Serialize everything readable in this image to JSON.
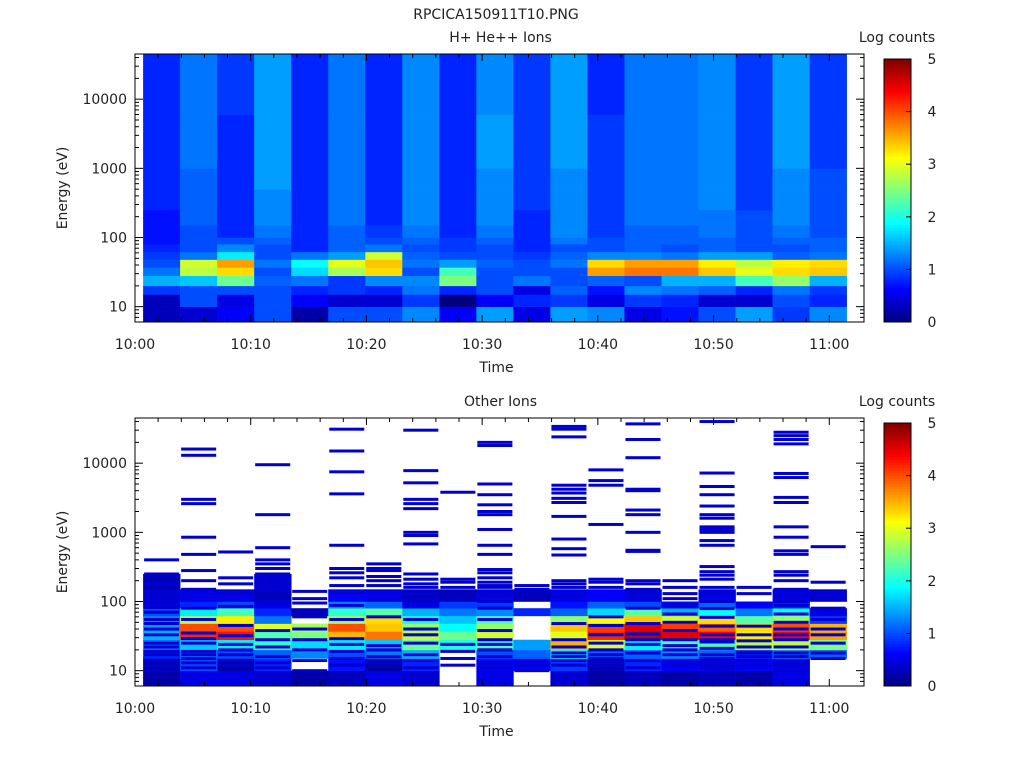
{
  "figure": {
    "title": "RPCICA150911T10.PNG"
  },
  "colors": {
    "jet": [
      "#00007f",
      "#0000ff",
      "#007fff",
      "#00ffff",
      "#7fff7f",
      "#ffff00",
      "#ff7f00",
      "#ff0000",
      "#7f0000"
    ],
    "axis": "#000000"
  },
  "chart_data": [
    {
      "type": "heatmap",
      "title": "H+ He++ Ions",
      "xlabel": "Time",
      "ylabel": "Energy (eV)",
      "colorbar_label": "Log counts",
      "x_ticks": [
        "10:00",
        "10:10",
        "10:20",
        "10:30",
        "10:40",
        "10:50",
        "11:00"
      ],
      "y_ticks": [
        "10",
        "100",
        "1000",
        "10000"
      ],
      "colorbar_ticks": [
        "0",
        "1",
        "2",
        "3",
        "4",
        "5"
      ],
      "y_scale": "log",
      "ylim": [
        6,
        45000
      ],
      "xlim_minutes": [
        0,
        63
      ],
      "color_range": [
        0,
        5
      ],
      "time_bins_minutes": [
        0.7,
        3.9,
        7.1,
        10.3,
        13.5,
        16.7,
        19.9,
        23.1,
        26.3,
        29.5,
        32.7,
        35.9,
        39.1,
        42.3,
        45.5,
        48.7,
        51.9,
        55.1,
        58.3,
        61.5
      ],
      "energy_band_edges_eV": [
        6,
        10,
        15,
        20,
        28,
        37,
        48,
        62,
        80,
        100,
        150,
        250,
        500,
        1000,
        2500,
        6000,
        15000,
        45000
      ],
      "values": [
        [
          0.3,
          0.4,
          0.6,
          1.0,
          0.2,
          1.0,
          1.0,
          1.3,
          0.6,
          1.4,
          0.5,
          1.4,
          1.3,
          0.5,
          0.7,
          1.0,
          1.4,
          0.9,
          1.3
        ],
        [
          0.3,
          1.0,
          0.5,
          1.0,
          0.6,
          0.4,
          0.4,
          0.9,
          0.0,
          0.6,
          0.8,
          0.9,
          0.5,
          0.9,
          0.8,
          0.4,
          0.4,
          1.0,
          0.8
        ],
        [
          0.9,
          1.0,
          1.0,
          1.0,
          0.8,
          0.9,
          0.8,
          1.2,
          0.8,
          1.0,
          0.5,
          1.1,
          0.7,
          1.3,
          1.2,
          1.1,
          0.8,
          1.2,
          0.9
        ],
        [
          1.5,
          1.6,
          2.4,
          1.1,
          1.2,
          0.9,
          1.3,
          1.3,
          2.5,
          1.0,
          1.2,
          1.0,
          1.1,
          1.0,
          1.5,
          1.5,
          2.2,
          2.6,
          1.5
        ],
        [
          1.2,
          2.8,
          3.3,
          1.0,
          1.7,
          2.7,
          3.3,
          1.0,
          2.2,
          1.0,
          1.0,
          1.0,
          3.6,
          3.8,
          3.8,
          3.4,
          3.0,
          3.3,
          3.4
        ],
        [
          1.0,
          2.9,
          3.6,
          1.2,
          1.9,
          3.0,
          3.4,
          1.2,
          1.4,
          1.1,
          1.0,
          1.2,
          3.3,
          3.6,
          3.6,
          3.2,
          2.8,
          3.2,
          3.3
        ],
        [
          0.9,
          1.2,
          1.8,
          1.0,
          1.2,
          1.4,
          2.9,
          1.1,
          1.0,
          1.0,
          0.9,
          1.1,
          1.3,
          1.3,
          1.2,
          1.4,
          1.4,
          1.1,
          1.2
        ],
        [
          0.8,
          1.0,
          1.3,
          1.0,
          0.8,
          1.1,
          1.2,
          1.0,
          0.9,
          1.0,
          0.8,
          1.0,
          1.0,
          1.1,
          1.0,
          1.1,
          1.0,
          1.0,
          1.1
        ],
        [
          0.7,
          1.0,
          1.0,
          1.1,
          0.8,
          1.1,
          1.0,
          1.1,
          0.9,
          1.1,
          0.8,
          1.2,
          1.0,
          1.1,
          1.1,
          1.1,
          1.0,
          1.1,
          1.1
        ],
        [
          0.7,
          1.0,
          0.8,
          1.2,
          0.8,
          1.1,
          0.9,
          1.2,
          0.8,
          1.2,
          0.8,
          1.3,
          0.9,
          1.1,
          1.1,
          1.2,
          1.0,
          1.2,
          1.0
        ],
        [
          0.7,
          1.1,
          0.8,
          1.3,
          0.8,
          1.2,
          0.8,
          1.3,
          0.8,
          1.3,
          0.8,
          1.3,
          0.9,
          1.2,
          1.2,
          1.2,
          1.0,
          1.3,
          1.0
        ],
        [
          0.8,
          1.1,
          0.8,
          1.3,
          0.8,
          1.2,
          0.8,
          1.3,
          0.8,
          1.3,
          0.9,
          1.3,
          0.9,
          1.2,
          1.2,
          1.3,
          0.9,
          1.3,
          1.0
        ],
        [
          0.8,
          1.1,
          0.8,
          1.4,
          0.8,
          1.2,
          0.8,
          1.3,
          0.8,
          1.3,
          0.9,
          1.3,
          0.9,
          1.2,
          1.2,
          1.3,
          0.9,
          1.3,
          1.0
        ],
        [
          0.8,
          1.2,
          0.8,
          1.4,
          0.8,
          1.2,
          0.8,
          1.3,
          0.8,
          1.4,
          0.9,
          1.4,
          0.9,
          1.2,
          1.2,
          1.3,
          0.9,
          1.4,
          0.9
        ],
        [
          0.8,
          1.2,
          0.8,
          1.4,
          0.8,
          1.2,
          0.8,
          1.3,
          0.8,
          1.4,
          0.9,
          1.4,
          0.9,
          1.2,
          1.2,
          1.3,
          0.9,
          1.4,
          0.9
        ],
        [
          0.8,
          1.2,
          0.9,
          1.4,
          0.8,
          1.2,
          0.8,
          1.3,
          0.8,
          1.3,
          0.9,
          1.4,
          0.8,
          1.2,
          1.2,
          1.3,
          0.9,
          1.4,
          0.9
        ],
        [
          0.8,
          1.2,
          0.9,
          1.4,
          0.8,
          1.2,
          0.8,
          1.3,
          0.8,
          1.3,
          0.9,
          1.4,
          0.8,
          1.2,
          1.2,
          1.3,
          0.9,
          1.4,
          0.9
        ]
      ]
    },
    {
      "type": "heatmap",
      "title": "Other Ions",
      "xlabel": "Time",
      "ylabel": "Energy (eV)",
      "colorbar_label": "Log counts",
      "x_ticks": [
        "10:00",
        "10:10",
        "10:20",
        "10:30",
        "10:40",
        "10:50",
        "11:00"
      ],
      "y_ticks": [
        "10",
        "100",
        "1000",
        "10000"
      ],
      "colorbar_ticks": [
        "0",
        "1",
        "2",
        "3",
        "4",
        "5"
      ],
      "y_scale": "log",
      "ylim": [
        6,
        45000
      ],
      "xlim_minutes": [
        0,
        63
      ],
      "color_range": [
        0,
        5
      ],
      "time_bins_minutes": [
        0.7,
        3.9,
        7.1,
        10.3,
        13.5,
        16.7,
        19.9,
        23.1,
        26.3,
        29.5,
        32.7,
        35.9,
        39.1,
        42.3,
        45.5,
        48.7,
        51.9,
        55.1,
        58.3,
        61.5
      ],
      "energy_band_edges_eV": [
        6,
        10,
        15,
        20,
        28,
        37,
        48,
        62,
        80,
        100,
        150,
        250,
        500,
        1000,
        2500,
        6000,
        15000,
        45000
      ],
      "values": [
        [
          0.2,
          0.5,
          0.5,
          0.4,
          0.2,
          0.3,
          0.5,
          0.4,
          null,
          0.5,
          null,
          0.4,
          0.2,
          0.3,
          0.2,
          0.3,
          0.2,
          0.5,
          null
        ],
        [
          0.2,
          1.0,
          0.2,
          0.8,
          null,
          0.7,
          0.2,
          0.8,
          null,
          0.6,
          0.6,
          0.9,
          0.3,
          0.8,
          0.6,
          0.5,
          0.6,
          0.5,
          null
        ],
        [
          0.8,
          1.2,
          1.0,
          1.1,
          1.3,
          1.0,
          1.2,
          1.5,
          null,
          1.0,
          1.1,
          1.8,
          1.1,
          1.1,
          1.3,
          1.1,
          0.8,
          1.2,
          1.1
        ],
        [
          1.2,
          1.6,
          1.8,
          2.1,
          1.7,
          1.8,
          1.6,
          2.4,
          2.0,
          2.2,
          1.4,
          3.5,
          3.0,
          1.8,
          2.2,
          2.2,
          2.8,
          2.8,
          2.5
        ],
        [
          1.5,
          4.2,
          4.3,
          2.3,
          2.5,
          3.5,
          3.8,
          2.8,
          2.4,
          2.9,
          null,
          3.0,
          4.2,
          4.7,
          4.5,
          4.4,
          3.2,
          4.4,
          3.6
        ],
        [
          1.4,
          4.0,
          4.0,
          3.0,
          2.7,
          4.0,
          3.4,
          2.6,
          1.9,
          2.6,
          null,
          3.4,
          4.1,
          4.5,
          4.1,
          3.9,
          3.3,
          4.0,
          3.5
        ],
        [
          1.3,
          2.8,
          3.2,
          1.2,
          null,
          2.7,
          3.3,
          2.0,
          1.6,
          2.2,
          null,
          2.6,
          3.1,
          3.4,
          2.9,
          3.3,
          2.3,
          2.6,
          0.9
        ],
        [
          1.0,
          1.8,
          2.2,
          0.8,
          0.3,
          2.1,
          2.3,
          1.5,
          1.2,
          1.3,
          0.8,
          1.1,
          1.7,
          2.3,
          1.5,
          1.9,
          1.2,
          1.9,
          0.5
        ],
        [
          0.5,
          0.8,
          1.0,
          0.5,
          null,
          1.3,
          1.1,
          0.5,
          0.9,
          0.9,
          null,
          0.7,
          1.1,
          1.0,
          0.6,
          1.1,
          0.6,
          0.8,
          null
        ],
        [
          0.4,
          0.5,
          0.5,
          0.3,
          null,
          0.6,
          0.5,
          0.3,
          0.3,
          0.5,
          0.3,
          0.5,
          0.6,
          0.5,
          null,
          0.5,
          null,
          0.5,
          0.4
        ],
        [
          0.3,
          null,
          null,
          0.4,
          null,
          null,
          null,
          null,
          null,
          null,
          null,
          null,
          null,
          null,
          null,
          null,
          null,
          null,
          null
        ],
        [
          null,
          null,
          null,
          null,
          null,
          null,
          null,
          null,
          null,
          null,
          null,
          null,
          null,
          null,
          null,
          null,
          null,
          null,
          null
        ],
        [
          null,
          null,
          null,
          null,
          null,
          null,
          null,
          null,
          null,
          null,
          null,
          null,
          null,
          null,
          null,
          null,
          null,
          null,
          null
        ],
        [
          null,
          null,
          null,
          null,
          null,
          null,
          null,
          null,
          null,
          null,
          null,
          null,
          null,
          null,
          null,
          null,
          null,
          null,
          null
        ],
        [
          null,
          null,
          null,
          null,
          null,
          null,
          null,
          null,
          null,
          null,
          null,
          null,
          null,
          null,
          null,
          null,
          null,
          null,
          null
        ],
        [
          null,
          null,
          null,
          null,
          null,
          null,
          null,
          null,
          null,
          null,
          null,
          null,
          null,
          null,
          null,
          null,
          null,
          null,
          null
        ],
        [
          null,
          null,
          null,
          null,
          null,
          null,
          null,
          null,
          null,
          null,
          null,
          null,
          null,
          null,
          null,
          null,
          null,
          null,
          null
        ]
      ],
      "sparse_lines_eV": [
        [
          10,
          12,
          14,
          17,
          19,
          22,
          25,
          33,
          40,
          48,
          55,
          70,
          82,
          95,
          130,
          180,
          250,
          400
        ],
        [
          11,
          13,
          15,
          17,
          19,
          25,
          29,
          35,
          55,
          80,
          150,
          200,
          280,
          480,
          850,
          2600,
          3000,
          13000,
          16000
        ],
        [
          12,
          14,
          17,
          20,
          24,
          32,
          45,
          85,
          130,
          180,
          220,
          520
        ],
        [
          11,
          13,
          16,
          22,
          28,
          38,
          100,
          150,
          200,
          250,
          300,
          350,
          400,
          600,
          1800,
          9500
        ],
        [
          10,
          14,
          20,
          28,
          40,
          60,
          95,
          110,
          140
        ],
        [
          12,
          15,
          19,
          24,
          29,
          55,
          88,
          130,
          170,
          220,
          260,
          300,
          650,
          3600,
          7500,
          15000,
          31000
        ],
        [
          13,
          16,
          20,
          23,
          60,
          170,
          200,
          230,
          280,
          300,
          350
        ],
        [
          11,
          14,
          17,
          25,
          33,
          40,
          55,
          110,
          130,
          160,
          180,
          210,
          250,
          680,
          900,
          1000,
          2200,
          2600,
          3000,
          5200,
          7800,
          30000
        ],
        [
          12,
          15,
          19,
          24,
          160,
          190,
          210,
          3800
        ],
        [
          11,
          13,
          16,
          20,
          24,
          28,
          38,
          55,
          80,
          100,
          120,
          140,
          160,
          170,
          190,
          220,
          260,
          290,
          480,
          650,
          1100,
          1800,
          2000,
          2500,
          3500,
          5000,
          18000,
          20000
        ],
        [
          10,
          12,
          14,
          150,
          170
        ],
        [
          12,
          14,
          16,
          18,
          22,
          28,
          48,
          120,
          160,
          180,
          200,
          470,
          580,
          800,
          1700,
          2700,
          3100,
          3700,
          4200,
          4800,
          24000,
          31000,
          34000
        ],
        [
          13,
          15,
          17,
          20,
          25,
          33,
          45,
          60,
          160,
          190,
          210,
          1300,
          4800,
          5600,
          8000
        ],
        [
          11,
          14,
          18,
          24,
          28,
          34,
          48,
          80,
          110,
          130,
          150,
          180,
          200,
          530,
          550,
          1000,
          1800,
          2100,
          4000,
          4200,
          12000,
          22000,
          37000
        ],
        [
          12,
          14,
          17,
          20,
          23,
          28,
          38,
          50,
          66,
          88,
          110,
          130,
          160,
          200
        ],
        [
          11,
          13,
          15,
          17,
          21,
          26,
          28,
          33,
          44,
          59,
          79,
          100,
          130,
          160,
          210,
          240,
          270,
          320,
          650,
          760,
          1000,
          1100,
          1200,
          1600,
          1800,
          2400,
          3500,
          4600,
          7200,
          40000
        ],
        [
          12,
          14,
          16,
          18,
          22,
          27,
          33,
          44,
          130,
          160
        ],
        [
          10,
          12,
          14,
          16,
          18,
          22,
          28,
          33,
          40,
          50,
          66,
          88,
          100,
          120,
          150,
          200,
          240,
          270,
          480,
          540,
          850,
          1200,
          2700,
          3200,
          6200,
          7100,
          19000,
          22000,
          25000,
          28000
        ],
        [
          15,
          18,
          25,
          33,
          40,
          55,
          80,
          130,
          190,
          620
        ]
      ]
    }
  ]
}
